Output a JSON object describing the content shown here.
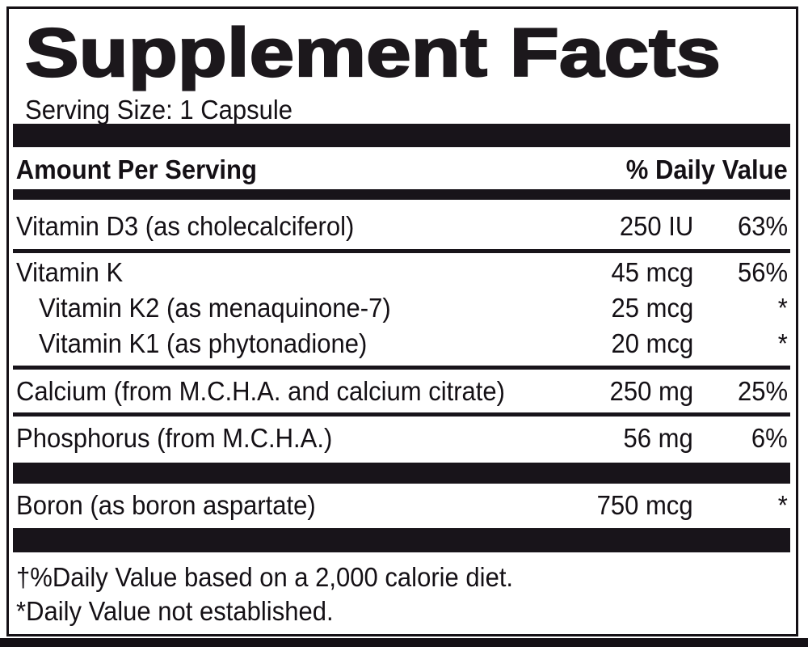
{
  "label": {
    "title": "Supplement Facts",
    "serving_size": "Serving Size: 1 Capsule",
    "header": {
      "amount_column": "Amount Per Serving",
      "daily_value_column": "% Daily Value"
    },
    "rows": [
      {
        "name": "Vitamin D3 (as cholecalciferol)",
        "amount": "250 IU",
        "daily_value": "63%"
      },
      {
        "name": "Vitamin K",
        "amount": "45 mcg",
        "daily_value": "56%"
      },
      {
        "name": "Vitamin K2 (as menaquinone-7)",
        "amount": "25 mcg",
        "daily_value": "*"
      },
      {
        "name": "Vitamin K1 (as phytonadione)",
        "amount": "20 mcg",
        "daily_value": "*"
      },
      {
        "name": "Calcium (from M.C.H.A. and calcium citrate)",
        "amount": "250 mg",
        "daily_value": "25%"
      },
      {
        "name": "Phosphorus (from M.C.H.A.)",
        "amount": "56 mg",
        "daily_value": "6%"
      },
      {
        "name": "Boron (as boron aspartate)",
        "amount": "750 mcg",
        "daily_value": "*"
      }
    ],
    "footnotes": [
      "†%Daily Value based on a 2,000 calorie diet.",
      "*Daily Value not established."
    ],
    "colors": {
      "ink": "#141015",
      "background": "#ffffff"
    }
  }
}
